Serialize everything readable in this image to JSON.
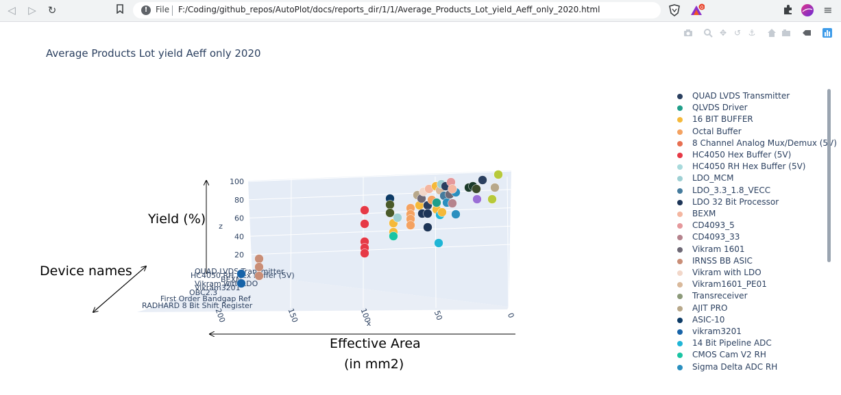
{
  "browser": {
    "file_label": "File",
    "url": "F:/Coding/github_repos/AutoPlot/docs/reports_dir/1/1/Average_Products_Lot_yield_Aeff_only_2020.html",
    "icons": [
      "back-icon",
      "forward-icon",
      "reload-icon",
      "bookmark-icon",
      "info-icon",
      "brave-shield-icon",
      "rewards-icon",
      "extensions-icon",
      "profile-avatar-icon",
      "menu-icon"
    ]
  },
  "modebar": {
    "icons": [
      "camera-icon",
      "zoom-icon",
      "pan-icon",
      "orbit-icon",
      "turntable-icon",
      "home-icon",
      "reset-camera-icon",
      "hover-spike-icon",
      "plotly-logo-icon"
    ]
  },
  "chart_data": {
    "type": "scatter3d",
    "title": "Average Products Lot yield Aeff only 2020",
    "axes": {
      "x": {
        "label": "x",
        "ticks": [
          200,
          150,
          100,
          50,
          0
        ]
      },
      "y": {
        "label": "",
        "tick_labels": [
          "QUAD LVDS Transmitter",
          "HC4050 RH Hex Buffer (5V)",
          "BEXM",
          "Vikram with LDO",
          "Vikram3201",
          "OBC2.3",
          "First Order Bandgap Ref",
          "RADHARD 8 Bit Shift Register"
        ]
      },
      "z": {
        "label": "z",
        "ticks": [
          20,
          40,
          60,
          80,
          100
        ]
      }
    },
    "legend_position": "right",
    "series": [
      {
        "name": "QUAD LVDS Transmitter",
        "color": "#2a3f5f"
      },
      {
        "name": "QLVDS Driver",
        "color": "#1f9e89"
      },
      {
        "name": "16 BIT BUFFER",
        "color": "#f5b93a"
      },
      {
        "name": "Octal Buffer",
        "color": "#f4a261"
      },
      {
        "name": "8 Channel Analog Mux/Demux (5V)",
        "color": "#e76f51"
      },
      {
        "name": "HC4050 Hex Buffer (5V)",
        "color": "#e63946"
      },
      {
        "name": "HC4050 RH Hex Buffer (5V)",
        "color": "#a8dadc"
      },
      {
        "name": "LDO_MCM",
        "color": "#9ed0d4"
      },
      {
        "name": "LDO_3.3_1.8_VECC",
        "color": "#457b9d"
      },
      {
        "name": "LDO 32 Bit Processor",
        "color": "#1d3557"
      },
      {
        "name": "BEXM",
        "color": "#f4b6a0"
      },
      {
        "name": "CD4093_5",
        "color": "#e5989b"
      },
      {
        "name": "CD4093_33",
        "color": "#b5838d"
      },
      {
        "name": "Vikram 1601",
        "color": "#6d6875"
      },
      {
        "name": "IRNSS BB ASIC",
        "color": "#c98e77"
      },
      {
        "name": "Vikram with LDO",
        "color": "#f2d7c9"
      },
      {
        "name": "Vikram1601_PE01",
        "color": "#d9b99b"
      },
      {
        "name": "Transreceiver",
        "color": "#8c9a7a"
      },
      {
        "name": "AJIT PRO",
        "color": "#b8a88a"
      },
      {
        "name": "ASIC-10",
        "color": "#0d3b66"
      },
      {
        "name": "vikram3201",
        "color": "#1763a8"
      },
      {
        "name": "14 Bit Pipeline ADC",
        "color": "#1fb5d6"
      },
      {
        "name": "CMOS Cam V2 RH",
        "color": "#19c4a3"
      },
      {
        "name": "Sigma Delta ADC RH",
        "color": "#2a8fbf"
      }
    ],
    "annotations": {
      "yield": "Yield (%)",
      "device": "Device names",
      "area_line1": "Effective Area",
      "area_line2": "(in mm2)"
    }
  }
}
